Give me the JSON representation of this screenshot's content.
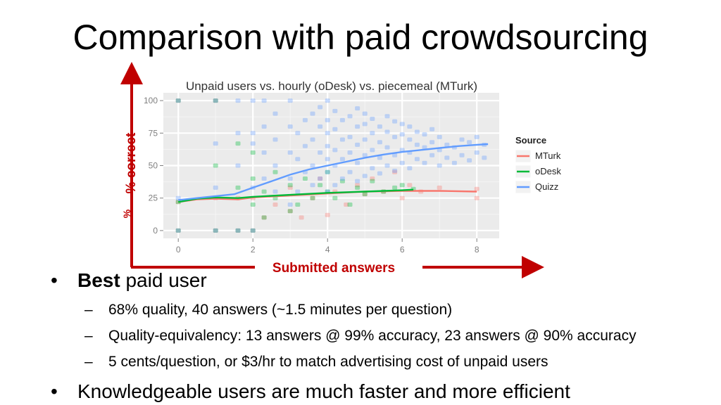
{
  "slide": {
    "title": "Comparison with paid crowdsourcing",
    "bullets": [
      {
        "bold": "Best",
        "text": " paid user"
      },
      {
        "text": "68% quality, 40 answers (~1.5 minutes per question)"
      },
      {
        "text": "Quality-equivalency: 13 answers @ 99% accuracy, 23 answers @ 90% accuracy"
      },
      {
        "text": "5 cents/question, or $3/hr to match advertising cost of unpaid users"
      },
      {
        "text": "Knowledgeable users are much faster and more efficient"
      }
    ]
  },
  "annotations": {
    "y_arrow_label": "% correct",
    "x_arrow_label": "Submitted answers",
    "arrow_color": "#c00000",
    "partial_hidden_label": "%"
  },
  "chart_data": {
    "type": "scatter",
    "title": "Unpaid users vs. hourly (oDesk) vs. piecemeal (MTurk)",
    "xlabel": "Submitted answers",
    "ylabel": "% correct",
    "xlim": [
      -0.4,
      8.6
    ],
    "ylim": [
      -6,
      106
    ],
    "xticks": [
      0,
      2,
      4,
      6,
      8
    ],
    "yticks": [
      0,
      25,
      50,
      75,
      100
    ],
    "grid": true,
    "panel_bg": "#ebebeb",
    "legend": {
      "title": "Source",
      "position": "right"
    },
    "series": [
      {
        "name": "MTurk",
        "color": "#f8766d",
        "trend": [
          [
            0,
            22
          ],
          [
            0.5,
            24
          ],
          [
            1,
            24.5
          ],
          [
            1.6,
            24
          ],
          [
            2,
            25.5
          ],
          [
            3,
            27
          ],
          [
            4,
            28.5
          ],
          [
            5,
            30
          ],
          [
            6,
            30.5
          ],
          [
            7,
            30.5
          ],
          [
            8,
            30
          ]
        ],
        "points": [
          [
            0,
            0
          ],
          [
            0,
            22
          ],
          [
            0,
            100
          ],
          [
            1,
            0
          ],
          [
            1,
            25
          ],
          [
            1,
            100
          ],
          [
            1.6,
            0
          ],
          [
            1.6,
            25
          ],
          [
            2,
            0
          ],
          [
            2,
            25
          ],
          [
            2.3,
            10
          ],
          [
            2.6,
            20
          ],
          [
            3,
            15
          ],
          [
            3,
            33
          ],
          [
            3.3,
            10
          ],
          [
            3.6,
            25
          ],
          [
            3.8,
            40
          ],
          [
            4,
            12
          ],
          [
            4.2,
            30
          ],
          [
            4.5,
            20
          ],
          [
            4.8,
            35
          ],
          [
            5,
            28
          ],
          [
            5.2,
            40
          ],
          [
            5.5,
            30
          ],
          [
            5.8,
            45
          ],
          [
            6,
            25
          ],
          [
            6.2,
            35
          ],
          [
            6.5,
            30
          ],
          [
            7,
            33
          ],
          [
            8,
            25
          ],
          [
            8,
            32
          ]
        ]
      },
      {
        "name": "oDesk",
        "color": "#00ba38",
        "trend": [
          [
            0,
            22
          ],
          [
            0.5,
            24.5
          ],
          [
            1,
            25.5
          ],
          [
            1.6,
            25
          ],
          [
            2,
            26
          ],
          [
            3,
            27.5
          ],
          [
            4,
            29
          ],
          [
            5,
            30
          ],
          [
            6,
            31
          ],
          [
            6.3,
            31.5
          ]
        ],
        "points": [
          [
            0,
            0
          ],
          [
            0,
            22
          ],
          [
            0,
            100
          ],
          [
            1,
            0
          ],
          [
            1,
            50
          ],
          [
            1,
            100
          ],
          [
            1.6,
            0
          ],
          [
            1.6,
            33
          ],
          [
            1.6,
            67
          ],
          [
            2,
            0
          ],
          [
            2,
            20
          ],
          [
            2,
            40
          ],
          [
            2,
            60
          ],
          [
            2.3,
            10
          ],
          [
            2.3,
            30
          ],
          [
            2.6,
            25
          ],
          [
            2.6,
            45
          ],
          [
            3,
            15
          ],
          [
            3,
            35
          ],
          [
            3.2,
            20
          ],
          [
            3.4,
            40
          ],
          [
            3.6,
            25
          ],
          [
            3.8,
            35
          ],
          [
            4,
            30
          ],
          [
            4,
            45
          ],
          [
            4.2,
            25
          ],
          [
            4.4,
            38
          ],
          [
            4.6,
            20
          ],
          [
            4.8,
            33
          ],
          [
            5,
            28
          ],
          [
            5.2,
            38
          ],
          [
            5.5,
            30
          ],
          [
            5.8,
            33
          ],
          [
            6,
            35
          ],
          [
            6.3,
            32
          ]
        ]
      },
      {
        "name": "Quizz",
        "color": "#619cff",
        "trend": [
          [
            0,
            23.5
          ],
          [
            0.5,
            25
          ],
          [
            1,
            26.5
          ],
          [
            1.5,
            28
          ],
          [
            2,
            33
          ],
          [
            2.5,
            38
          ],
          [
            3,
            43
          ],
          [
            3.5,
            47
          ],
          [
            4,
            50
          ],
          [
            4.5,
            53
          ],
          [
            5,
            56
          ],
          [
            5.5,
            58.5
          ],
          [
            6,
            60.5
          ],
          [
            6.5,
            62
          ],
          [
            7,
            63.5
          ],
          [
            7.5,
            65
          ],
          [
            8,
            66
          ],
          [
            8.3,
            66.5
          ]
        ],
        "points": [
          [
            0,
            0
          ],
          [
            0,
            25
          ],
          [
            0,
            100
          ],
          [
            1,
            0
          ],
          [
            1,
            33
          ],
          [
            1,
            67
          ],
          [
            1,
            100
          ],
          [
            1.6,
            0
          ],
          [
            1.6,
            50
          ],
          [
            1.6,
            75
          ],
          [
            1.6,
            100
          ],
          [
            2,
            0
          ],
          [
            2,
            33
          ],
          [
            2,
            67
          ],
          [
            2,
            75
          ],
          [
            2,
            100
          ],
          [
            2.3,
            40
          ],
          [
            2.3,
            60
          ],
          [
            2.3,
            80
          ],
          [
            2.3,
            100
          ],
          [
            2.6,
            30
          ],
          [
            2.6,
            50
          ],
          [
            2.6,
            70
          ],
          [
            2.6,
            90
          ],
          [
            3,
            20
          ],
          [
            3,
            40
          ],
          [
            3,
            60
          ],
          [
            3,
            80
          ],
          [
            3,
            100
          ],
          [
            3.2,
            30
          ],
          [
            3.2,
            55
          ],
          [
            3.2,
            75
          ],
          [
            3.4,
            45
          ],
          [
            3.4,
            65
          ],
          [
            3.4,
            85
          ],
          [
            3.6,
            35
          ],
          [
            3.6,
            50
          ],
          [
            3.6,
            70
          ],
          [
            3.6,
            90
          ],
          [
            3.8,
            40
          ],
          [
            3.8,
            60
          ],
          [
            3.8,
            80
          ],
          [
            3.8,
            95
          ],
          [
            4,
            30
          ],
          [
            4,
            45
          ],
          [
            4,
            55
          ],
          [
            4,
            65
          ],
          [
            4,
            75
          ],
          [
            4,
            85
          ],
          [
            4,
            100
          ],
          [
            4.2,
            35
          ],
          [
            4.2,
            50
          ],
          [
            4.2,
            62
          ],
          [
            4.2,
            78
          ],
          [
            4.2,
            92
          ],
          [
            4.4,
            40
          ],
          [
            4.4,
            55
          ],
          [
            4.4,
            70
          ],
          [
            4.4,
            85
          ],
          [
            4.6,
            45
          ],
          [
            4.6,
            60
          ],
          [
            4.6,
            72
          ],
          [
            4.6,
            88
          ],
          [
            4.8,
            38
          ],
          [
            4.8,
            52
          ],
          [
            4.8,
            66
          ],
          [
            4.8,
            80
          ],
          [
            4.8,
            94
          ],
          [
            5,
            42
          ],
          [
            5,
            58
          ],
          [
            5,
            70
          ],
          [
            5,
            82
          ],
          [
            5,
            90
          ],
          [
            5.2,
            48
          ],
          [
            5.2,
            62
          ],
          [
            5.2,
            75
          ],
          [
            5.2,
            86
          ],
          [
            5.4,
            44
          ],
          [
            5.4,
            56
          ],
          [
            5.4,
            68
          ],
          [
            5.4,
            80
          ],
          [
            5.6,
            50
          ],
          [
            5.6,
            64
          ],
          [
            5.6,
            76
          ],
          [
            5.6,
            88
          ],
          [
            5.8,
            46
          ],
          [
            5.8,
            58
          ],
          [
            5.8,
            72
          ],
          [
            5.8,
            84
          ],
          [
            6,
            52
          ],
          [
            6,
            62
          ],
          [
            6,
            74
          ],
          [
            6,
            82
          ],
          [
            6.2,
            48
          ],
          [
            6.2,
            60
          ],
          [
            6.2,
            70
          ],
          [
            6.2,
            80
          ],
          [
            6.4,
            55
          ],
          [
            6.4,
            66
          ],
          [
            6.4,
            76
          ],
          [
            6.6,
            52
          ],
          [
            6.6,
            64
          ],
          [
            6.6,
            74
          ],
          [
            6.8,
            58
          ],
          [
            6.8,
            68
          ],
          [
            6.8,
            78
          ],
          [
            7,
            50
          ],
          [
            7,
            62
          ],
          [
            7,
            72
          ],
          [
            7.2,
            56
          ],
          [
            7.2,
            66
          ],
          [
            7.4,
            52
          ],
          [
            7.4,
            64
          ],
          [
            7.6,
            58
          ],
          [
            7.6,
            70
          ],
          [
            7.8,
            54
          ],
          [
            7.8,
            68
          ],
          [
            8,
            60
          ],
          [
            8,
            72
          ],
          [
            8.2,
            56
          ],
          [
            8.2,
            66
          ]
        ]
      }
    ]
  }
}
